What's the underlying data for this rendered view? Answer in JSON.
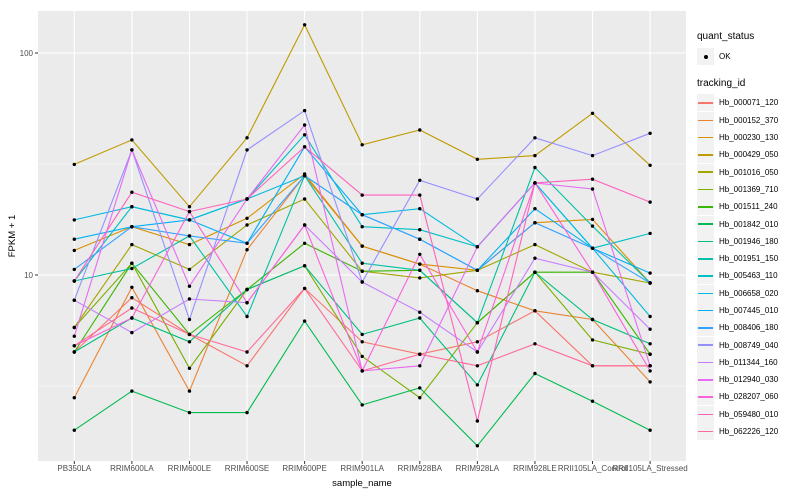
{
  "chart_data": {
    "type": "line",
    "title": "",
    "xlabel": "sample_name",
    "ylabel": "FPKM + 1",
    "y_scale": "log10",
    "y_ticks": [
      10,
      100
    ],
    "y_minor_ticks": [
      3.162,
      31.62
    ],
    "ylim": [
      1.32,
      163
    ],
    "grid": true,
    "panel_bg": "#EBEBEB",
    "grid_color": "#FFFFFF",
    "point_color": "#000000",
    "categories": [
      "PB350LA",
      "RRIM600LA",
      "RRIM600LE",
      "RRIM600SE",
      "RRIM600PE",
      "RRIM901LA",
      "RRIM928BA",
      "RRIM928LA",
      "RRIM928LE",
      "RRII105LA_Control",
      "RRII105LA_Stressed"
    ],
    "series": [
      {
        "name": "Hb_000071_120",
        "color": "#F8766D",
        "values": [
          4.5,
          7.9,
          5.4,
          3.9,
          8.7,
          5.0,
          4.4,
          5.0,
          6.9,
          3.9,
          3.9
        ]
      },
      {
        "name": "Hb_000152_370",
        "color": "#EA8331",
        "values": [
          2.8,
          8.8,
          3.0,
          13.0,
          28.0,
          13.5,
          11.2,
          8.5,
          6.9,
          6.3,
          3.3
        ]
      },
      {
        "name": "Hb_000230_130",
        "color": "#D89000",
        "values": [
          12.9,
          16.5,
          13.7,
          18.0,
          28.5,
          13.5,
          11.2,
          10.5,
          17.2,
          17.8,
          9.2
        ]
      },
      {
        "name": "Hb_000429_050",
        "color": "#C09B00",
        "values": [
          31.5,
          40.6,
          20.3,
          41.5,
          134.0,
          38.6,
          45.0,
          33.2,
          34.5,
          53.5,
          31.2
        ]
      },
      {
        "name": "Hb_001016_050",
        "color": "#A3A500",
        "values": [
          5.8,
          13.7,
          10.6,
          16.8,
          22.0,
          10.4,
          9.7,
          10.5,
          13.7,
          10.3,
          9.2
        ]
      },
      {
        "name": "Hb_001369_710",
        "color": "#7CAE00",
        "values": [
          5.8,
          11.3,
          3.8,
          8.6,
          11.0,
          4.3,
          2.8,
          6.1,
          10.3,
          5.1,
          4.4
        ]
      },
      {
        "name": "Hb_001511_240",
        "color": "#39B600",
        "values": [
          4.5,
          11.3,
          5.4,
          8.6,
          13.9,
          10.4,
          10.5,
          6.1,
          10.3,
          10.3,
          4.4
        ]
      },
      {
        "name": "Hb_001842_010",
        "color": "#00BB4E",
        "values": [
          2.0,
          3.0,
          2.4,
          2.4,
          6.2,
          2.6,
          3.1,
          1.7,
          3.6,
          2.7,
          2.0
        ]
      },
      {
        "name": "Hb_001946_180",
        "color": "#00BF7D",
        "values": [
          4.5,
          6.4,
          5.0,
          8.6,
          11.0,
          5.4,
          6.4,
          3.2,
          10.3,
          6.3,
          4.9
        ]
      },
      {
        "name": "Hb_001951_150",
        "color": "#00C1A3",
        "values": [
          9.4,
          10.7,
          15.0,
          6.5,
          28.0,
          11.3,
          10.5,
          6.1,
          30.5,
          16.6,
          9.2
        ]
      },
      {
        "name": "Hb_005463_110",
        "color": "#00BFC4",
        "values": [
          9.4,
          20.3,
          17.7,
          22.0,
          42.8,
          16.5,
          16.0,
          13.4,
          26.0,
          13.2,
          15.4
        ]
      },
      {
        "name": "Hb_006658_020",
        "color": "#00BAE0",
        "values": [
          17.7,
          20.3,
          17.7,
          22.0,
          28.0,
          18.7,
          19.9,
          13.4,
          26.0,
          13.2,
          6.5
        ]
      },
      {
        "name": "Hb_007445_010",
        "color": "#00B0F6",
        "values": [
          14.5,
          16.5,
          17.7,
          13.9,
          37.8,
          18.7,
          14.5,
          10.5,
          19.9,
          13.2,
          10.2
        ]
      },
      {
        "name": "Hb_008406_180",
        "color": "#35A2FF",
        "values": [
          10.6,
          16.5,
          15.0,
          13.9,
          28.0,
          18.7,
          14.5,
          10.5,
          17.2,
          13.2,
          9.2
        ]
      },
      {
        "name": "Hb_008749_040",
        "color": "#9590FF",
        "values": [
          7.7,
          36.6,
          6.3,
          36.6,
          55.0,
          9.3,
          26.7,
          22.0,
          41.5,
          34.5,
          43.5
        ]
      },
      {
        "name": "Hb_011344_160",
        "color": "#C77CFF",
        "values": [
          7.7,
          5.5,
          7.8,
          7.5,
          16.8,
          9.3,
          6.8,
          4.5,
          11.9,
          10.3,
          5.7
        ]
      },
      {
        "name": "Hb_012940_030",
        "color": "#E76BF3",
        "values": [
          5.3,
          36.6,
          8.9,
          22.0,
          47.4,
          3.7,
          3.9,
          13.4,
          26.0,
          24.4,
          3.9
        ]
      },
      {
        "name": "Hb_028207_060",
        "color": "#FA62DB",
        "values": [
          4.8,
          6.4,
          19.3,
          7.5,
          16.8,
          3.7,
          12.4,
          4.5,
          26.0,
          10.3,
          3.7
        ]
      },
      {
        "name": "Hb_059480_010",
        "color": "#FF62BC",
        "values": [
          9.4,
          23.6,
          19.3,
          22.0,
          37.8,
          22.9,
          22.9,
          2.2,
          26.0,
          27.0,
          21.3
        ]
      },
      {
        "name": "Hb_062226_120",
        "color": "#FF6A98",
        "values": [
          4.8,
          7.1,
          5.4,
          4.5,
          8.7,
          3.7,
          4.4,
          3.9,
          4.9,
          3.9,
          3.9
        ]
      }
    ]
  },
  "legend": {
    "quant_status_title": "quant_status",
    "ok_label": "OK",
    "tracking_id_title": "tracking_id"
  }
}
